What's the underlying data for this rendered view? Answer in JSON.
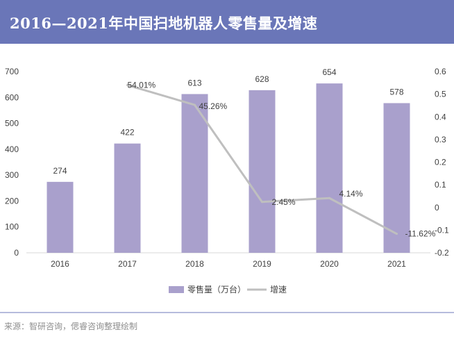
{
  "header": {
    "title": "2016—2021年中国扫地机器人零售量及增速"
  },
  "footer": {
    "source": "来源：智研咨询，偲睿咨询整理绘制"
  },
  "colors": {
    "header_bg": "#6a76b8",
    "bar": "#a9a0cc",
    "line": "#bfbfbf",
    "footer_line": "#b6bbdd"
  },
  "chart_data": {
    "type": "bar+line",
    "categories": [
      "2016",
      "2017",
      "2018",
      "2019",
      "2020",
      "2021"
    ],
    "series": [
      {
        "name": "零售量（万台）",
        "type": "bar",
        "axis": "left",
        "values": [
          274,
          422,
          613,
          628,
          654,
          578
        ],
        "labels": [
          "274",
          "422",
          "613",
          "628",
          "654",
          "578"
        ]
      },
      {
        "name": "增速",
        "type": "line",
        "axis": "right",
        "values": [
          null,
          0.5401,
          0.4526,
          0.0245,
          0.0414,
          -0.1162
        ],
        "labels": [
          "",
          "54.01%",
          "45.26%",
          "2.45%",
          "4.14%",
          "-11.62%"
        ]
      }
    ],
    "y_left": {
      "range": [
        0,
        700
      ],
      "ticks": [
        "0",
        "100",
        "200",
        "300",
        "400",
        "500",
        "600",
        "700"
      ]
    },
    "y_right": {
      "range": [
        -0.2,
        0.6
      ],
      "ticks": [
        "-0.2",
        "-0.1",
        "0",
        "0.1",
        "0.2",
        "0.3",
        "0.4",
        "0.5",
        "0.6"
      ]
    },
    "grid": false,
    "legend_position": "bottom"
  }
}
